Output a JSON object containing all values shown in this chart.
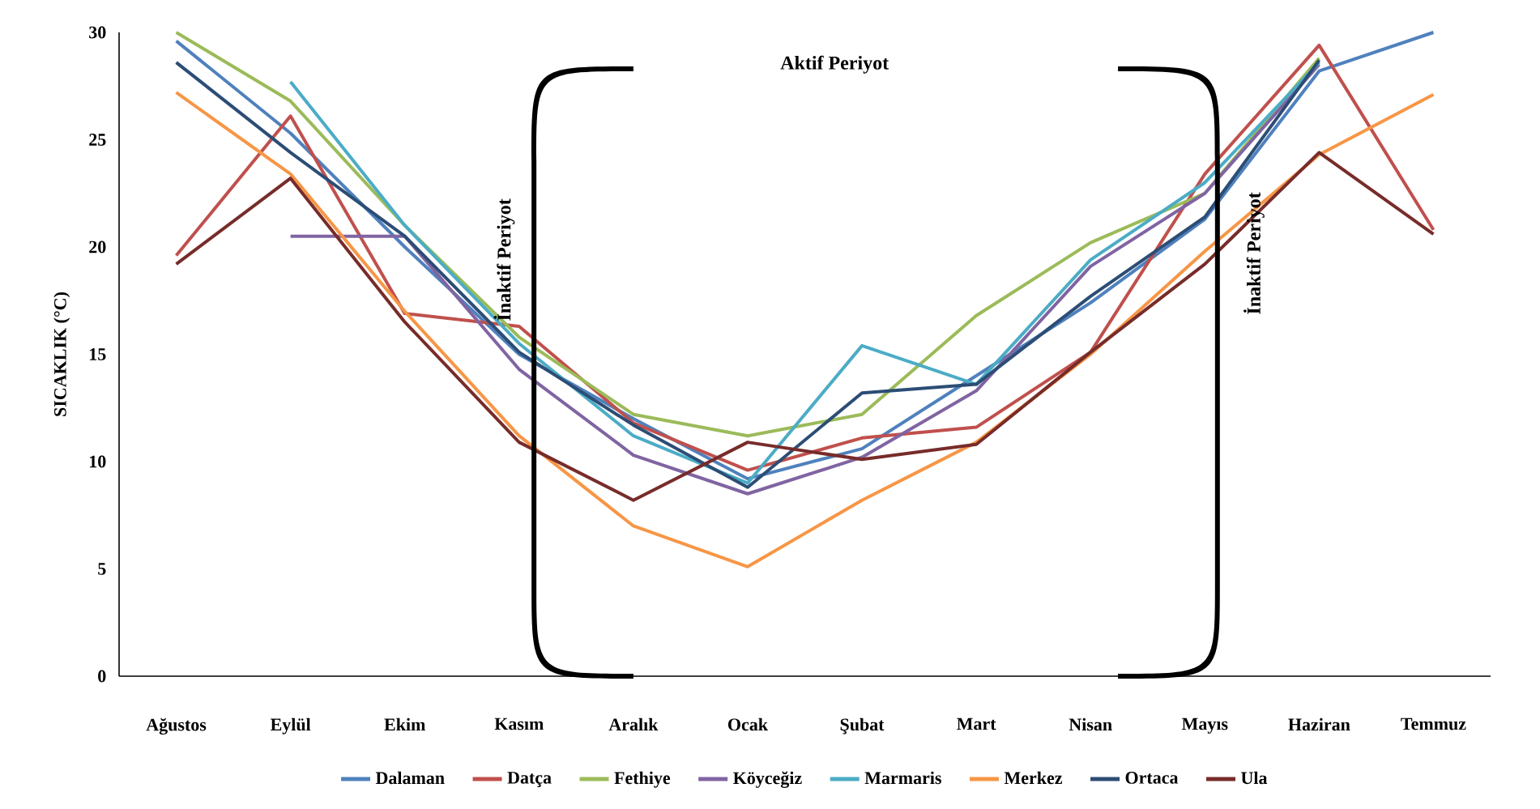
{
  "chart_data": {
    "type": "line",
    "ylabel": "SICAKLIK (°C)",
    "categories": [
      "Ağustos",
      "Eylül",
      "Ekim",
      "Kasım",
      "Aralık",
      "Ocak",
      "Şubat",
      "Mart",
      "Nisan",
      "Mayıs",
      "Haziran",
      "Temmuz"
    ],
    "series": [
      {
        "name": "Dalaman",
        "color": "#4f81bd",
        "values": [
          29.6,
          25.3,
          20.0,
          15.0,
          12.0,
          9.2,
          10.6,
          14.0,
          17.4,
          21.3,
          28.2,
          30.0
        ]
      },
      {
        "name": "Datça",
        "color": "#c0504d",
        "values": [
          19.6,
          26.1,
          16.9,
          16.3,
          11.8,
          9.6,
          11.1,
          11.6,
          15.1,
          23.4,
          29.4,
          20.8
        ]
      },
      {
        "name": "Fethiye",
        "color": "#9bbb59",
        "values": [
          30.0,
          26.8,
          21.0,
          15.8,
          12.2,
          11.2,
          12.2,
          16.8,
          20.2,
          22.5,
          28.8,
          null
        ]
      },
      {
        "name": "Köyceğiz",
        "color": "#8064a2",
        "values": [
          null,
          20.5,
          20.5,
          14.3,
          10.3,
          8.5,
          10.2,
          13.3,
          19.1,
          22.5,
          28.5,
          null
        ]
      },
      {
        "name": "Marmaris",
        "color": "#4bacc6",
        "values": [
          null,
          27.7,
          21.0,
          15.5,
          11.2,
          9.0,
          15.4,
          13.6,
          19.4,
          23.0,
          28.6,
          null
        ]
      },
      {
        "name": "Merkez",
        "color": "#f79646",
        "values": [
          27.2,
          23.4,
          17.0,
          11.2,
          7.0,
          5.1,
          8.2,
          10.9,
          15.0,
          19.8,
          24.3,
          27.1
        ]
      },
      {
        "name": "Ortaca",
        "color": "#2c4d75",
        "values": [
          28.6,
          24.4,
          20.5,
          15.1,
          11.7,
          8.8,
          13.2,
          13.6,
          17.7,
          21.4,
          28.7,
          null
        ]
      },
      {
        "name": "Ula",
        "color": "#772c2a",
        "values": [
          19.2,
          23.2,
          16.5,
          10.9,
          8.2,
          10.9,
          10.1,
          10.8,
          15.1,
          19.2,
          24.4,
          20.6
        ]
      }
    ],
    "ylim": [
      0,
      30
    ],
    "yticks": [
      0,
      5,
      10,
      15,
      20,
      25,
      30
    ],
    "grid": false,
    "legend": "bottom",
    "marker": "none",
    "line_style": "solid",
    "annotations": [
      "Aktif  Periyot",
      "İnaktif  Periyot",
      "İnaktif  Periyot"
    ]
  }
}
